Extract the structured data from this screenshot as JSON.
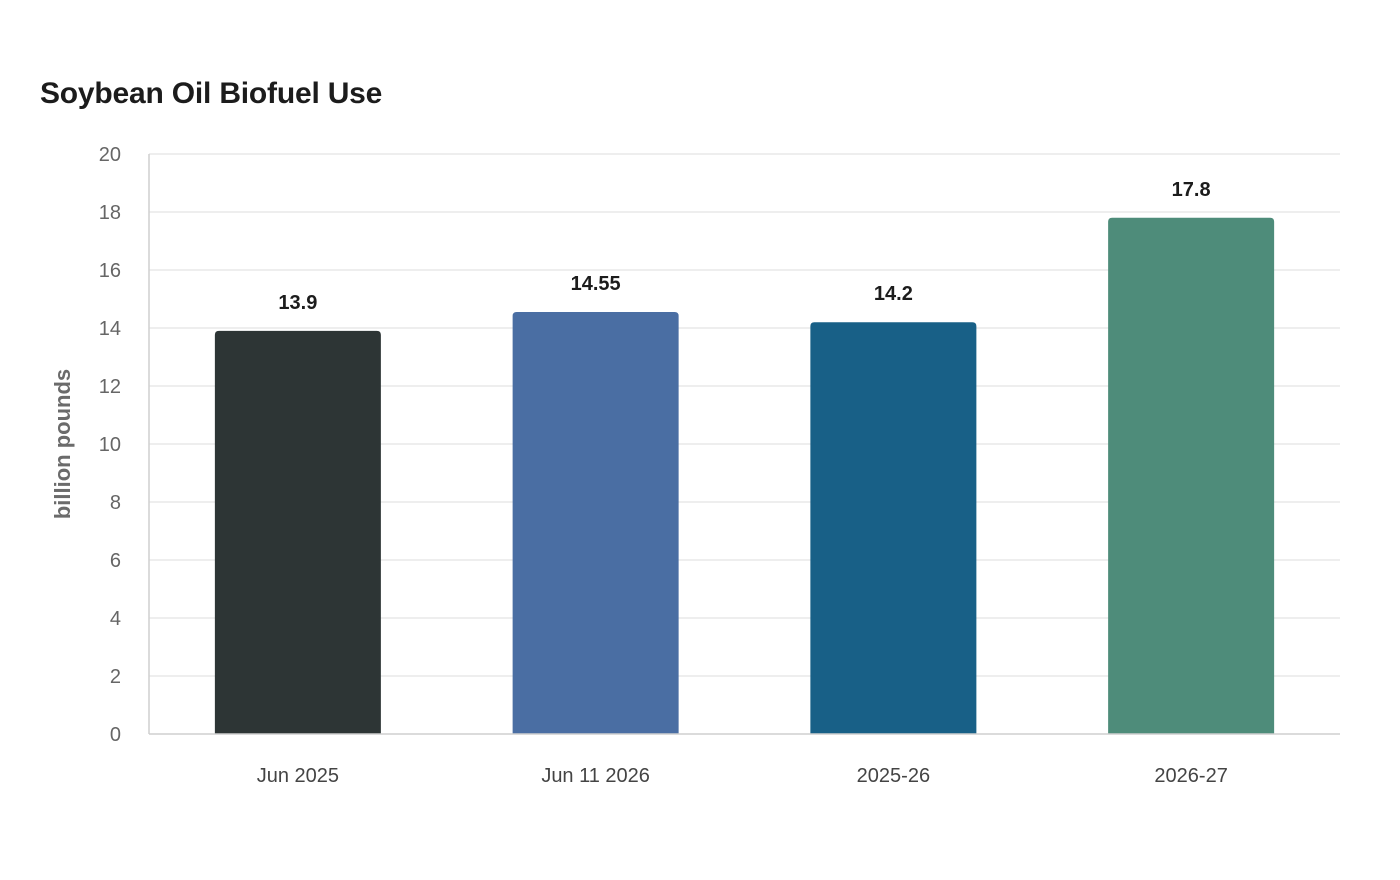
{
  "chart_data": {
    "type": "bar",
    "title": "Soybean Oil Biofuel Use",
    "xlabel": "",
    "ylabel": "billion pounds",
    "categories": [
      "Jun 2025",
      "Jun 11 2026",
      "2025-26",
      "2026-27"
    ],
    "values": [
      13.9,
      14.55,
      14.2,
      17.8
    ],
    "value_labels": [
      "13.9",
      "14.55",
      "14.2",
      "17.8"
    ],
    "colors": [
      "#2d3535",
      "#4a6ea3",
      "#186087",
      "#4e8c7a"
    ],
    "ylim": [
      0,
      20
    ],
    "yticks": [
      0,
      2,
      4,
      6,
      8,
      10,
      12,
      14,
      16,
      18,
      20
    ],
    "grid": true,
    "legend": "none"
  }
}
